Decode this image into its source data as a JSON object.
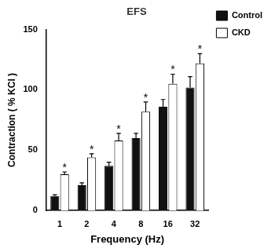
{
  "chart_data": {
    "type": "bar",
    "title": "EFS",
    "x_label": "Frequency (Hz)",
    "y_label": "Contraction ( % KCl )",
    "categories": [
      "1",
      "2",
      "4",
      "8",
      "16",
      "32"
    ],
    "series": [
      {
        "name": "Control",
        "color": "#111111",
        "values": [
          12,
          21,
          37,
          60,
          86,
          102
        ],
        "errors": [
          1,
          2,
          3,
          4,
          6,
          9
        ]
      },
      {
        "name": "CKD",
        "color": "#ffffff",
        "values": [
          30,
          44,
          58,
          82,
          105,
          122
        ],
        "errors": [
          2,
          3,
          6,
          8,
          8,
          8
        ],
        "annotations": [
          "*",
          "*",
          "*",
          "*",
          "*",
          "*"
        ]
      }
    ],
    "ylim": [
      0,
      150
    ],
    "yticks": [
      0,
      50,
      100,
      150
    ],
    "grid": false,
    "legend": "right"
  }
}
